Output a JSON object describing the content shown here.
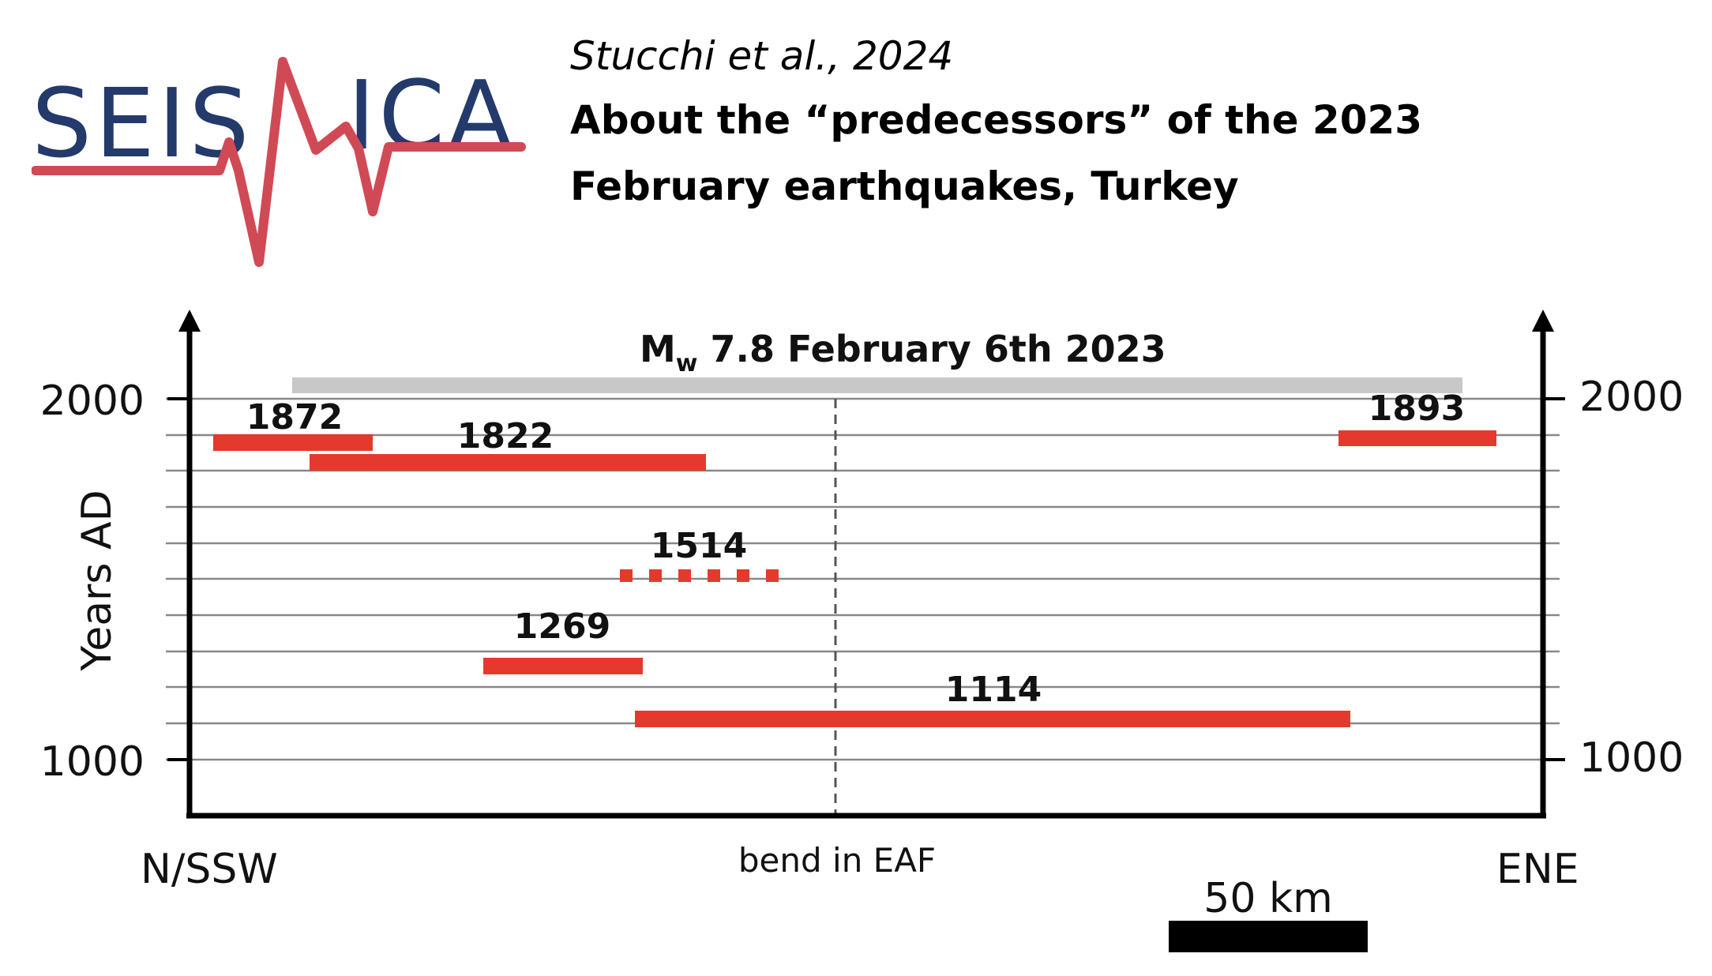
{
  "logo": {
    "text_left": "SEIS",
    "text_right": "ICA",
    "navy": "#233a6b",
    "red": "#d04a56"
  },
  "header": {
    "citation": "Stucchi et al., 2024",
    "title": "About the “predecessors” of the 2023 February earthquakes, Turkey"
  },
  "diagram": {
    "event_label_main": "M",
    "event_label_sub": "w",
    "event_label_rest": " 7.8 February 6th 2023",
    "y_axis_label": "Years AD",
    "y_ticks_left": [
      "2000",
      "1000"
    ],
    "y_ticks_right": [
      "2000",
      "1000"
    ],
    "x_label_left": "N/SSW",
    "x_label_right": "ENE",
    "bend_label": "bend in EAF",
    "scale_label": "50 km",
    "colors": {
      "rupture": "#e6392d",
      "event_bar": "#c8c8c8",
      "axis": "#000000",
      "grid": "#888888"
    },
    "ruptures": [
      {
        "label": "1872",
        "style": "solid"
      },
      {
        "label": "1822",
        "style": "solid"
      },
      {
        "label": "1893",
        "style": "solid"
      },
      {
        "label": "1514",
        "style": "dotted"
      },
      {
        "label": "1269",
        "style": "solid"
      },
      {
        "label": "1114",
        "style": "solid"
      }
    ]
  }
}
